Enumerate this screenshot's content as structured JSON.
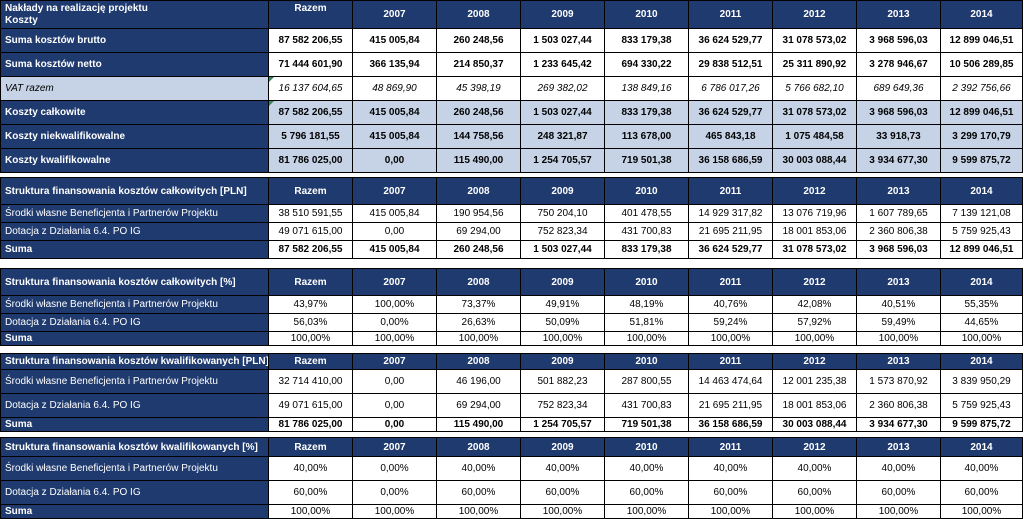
{
  "years": [
    "2007",
    "2008",
    "2009",
    "2010",
    "2011",
    "2012",
    "2013",
    "2014"
  ],
  "razem_label": "Razem",
  "t1": {
    "title_line1": "Nakłady na realizację projektu",
    "title_line2": "Koszty",
    "rows": [
      {
        "label": "Suma kosztów brutto",
        "values": [
          "87 582 206,55",
          "415 005,84",
          "260 248,56",
          "1 503 027,44",
          "833 179,38",
          "36 624 529,77",
          "31 078 573,02",
          "3 968 596,03",
          "12 899 046,51"
        ]
      },
      {
        "label": "Suma kosztów netto",
        "values": [
          "71 444 601,90",
          "366 135,94",
          "214 850,37",
          "1 233 645,42",
          "694 330,22",
          "29 838 512,51",
          "25 311 890,92",
          "3 278 946,67",
          "10 506 289,85"
        ]
      },
      {
        "label": "VAT razem",
        "values": [
          "16 137 604,65",
          "48 869,90",
          "45 398,19",
          "269 382,02",
          "138 849,16",
          "6 786 017,26",
          "5 766 682,10",
          "689 649,36",
          "2 392 756,66"
        ]
      },
      {
        "label": "Koszty całkowite",
        "values": [
          "87 582 206,55",
          "415 005,84",
          "260 248,56",
          "1 503 027,44",
          "833 179,38",
          "36 624 529,77",
          "31 078 573,02",
          "3 968 596,03",
          "12 899 046,51"
        ]
      },
      {
        "label": "Koszty niekwalifikowalne",
        "values": [
          "5 796 181,55",
          "415 005,84",
          "144 758,56",
          "248 321,87",
          "113 678,00",
          "465 843,18",
          "1 075 484,58",
          "33 918,73",
          "3 299 170,79"
        ]
      },
      {
        "label": "Koszty kwalifikowalne",
        "values": [
          "81 786 025,00",
          "0,00",
          "115 490,00",
          "1 254 705,57",
          "719 501,38",
          "36 158 686,59",
          "30 003 088,44",
          "3 934 677,30",
          "9 599 875,72"
        ]
      }
    ]
  },
  "t2": {
    "title": "Struktura finansowania kosztów całkowitych [PLN]",
    "rows": [
      {
        "label": "Środki własne Beneficjenta i Partnerów Projektu",
        "values": [
          "38 510 591,55",
          "415 005,84",
          "190 954,56",
          "750 204,10",
          "401 478,55",
          "14 929 317,82",
          "13 076 719,96",
          "1 607 789,65",
          "7 139 121,08"
        ]
      },
      {
        "label": "Dotacja z Działania 6.4. PO IG",
        "values": [
          "49 071 615,00",
          "0,00",
          "69 294,00",
          "752 823,34",
          "431 700,83",
          "21 695 211,95",
          "18 001 853,06",
          "2 360 806,38",
          "5 759 925,43"
        ]
      },
      {
        "label": "Suma",
        "values": [
          "87 582 206,55",
          "415 005,84",
          "260 248,56",
          "1 503 027,44",
          "833 179,38",
          "36 624 529,77",
          "31 078 573,02",
          "3 968 596,03",
          "12 899 046,51"
        ]
      }
    ]
  },
  "t3": {
    "title": "Struktura finansowania kosztów całkowitych [%]",
    "rows": [
      {
        "label": "Środki własne Beneficjenta i Partnerów Projektu",
        "values": [
          "43,97%",
          "100,00%",
          "73,37%",
          "49,91%",
          "48,19%",
          "40,76%",
          "42,08%",
          "40,51%",
          "55,35%"
        ]
      },
      {
        "label": "Dotacja z Działania 6.4. PO IG",
        "values": [
          "56,03%",
          "0,00%",
          "26,63%",
          "50,09%",
          "51,81%",
          "59,24%",
          "57,92%",
          "59,49%",
          "44,65%"
        ]
      },
      {
        "label": "Suma",
        "values": [
          "100,00%",
          "100,00%",
          "100,00%",
          "100,00%",
          "100,00%",
          "100,00%",
          "100,00%",
          "100,00%",
          "100,00%"
        ]
      }
    ]
  },
  "t4": {
    "title": "Struktura finansowania kosztów kwalifikowanych [PLN]",
    "rows": [
      {
        "label": "Środki własne Beneficjenta i Partnerów Projektu",
        "values": [
          "32 714 410,00",
          "0,00",
          "46 196,00",
          "501 882,23",
          "287 800,55",
          "14 463 474,64",
          "12 001 235,38",
          "1 573 870,92",
          "3 839 950,29"
        ]
      },
      {
        "label": "Dotacja z Działania 6.4. PO IG",
        "values": [
          "49 071 615,00",
          "0,00",
          "69 294,00",
          "752 823,34",
          "431 700,83",
          "21 695 211,95",
          "18 001 853,06",
          "2 360 806,38",
          "5 759 925,43"
        ]
      },
      {
        "label": "Suma",
        "values": [
          "81 786 025,00",
          "0,00",
          "115 490,00",
          "1 254 705,57",
          "719 501,38",
          "36 158 686,59",
          "30 003 088,44",
          "3 934 677,30",
          "9 599 875,72"
        ]
      }
    ]
  },
  "t5": {
    "title": "Struktura finansowania kosztów kwalifikowanych [%]",
    "rows": [
      {
        "label": "Środki własne Beneficjenta i Partnerów Projektu",
        "values": [
          "40,00%",
          "0,00%",
          "40,00%",
          "40,00%",
          "40,00%",
          "40,00%",
          "40,00%",
          "40,00%",
          "40,00%"
        ]
      },
      {
        "label": "Dotacja z Działania 6.4. PO IG",
        "values": [
          "60,00%",
          "0,00%",
          "60,00%",
          "60,00%",
          "60,00%",
          "60,00%",
          "60,00%",
          "60,00%",
          "60,00%"
        ]
      },
      {
        "label": "Suma",
        "values": [
          "100,00%",
          "100,00%",
          "100,00%",
          "100,00%",
          "100,00%",
          "100,00%",
          "100,00%",
          "100,00%",
          "100,00%"
        ]
      }
    ]
  }
}
